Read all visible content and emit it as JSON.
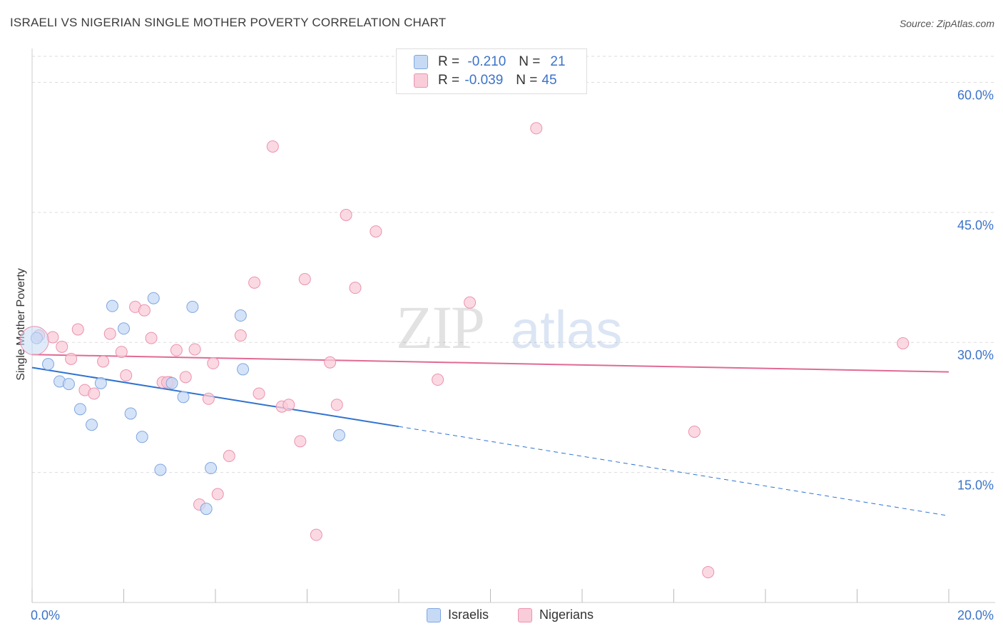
{
  "title": "ISRAELI VS NIGERIAN SINGLE MOTHER POVERTY CORRELATION CHART",
  "source": "Source: ZipAtlas.com",
  "watermark": {
    "zip": "ZIP",
    "atlas": "atlas"
  },
  "legend": {
    "rows": [
      {
        "r_label": "R =",
        "r_value": "-0.210",
        "n_label": "N =",
        "n_value": "21"
      },
      {
        "r_label": "R =",
        "r_value": "-0.039",
        "n_label": "N =",
        "n_value": "45"
      }
    ]
  },
  "colors": {
    "israelis_fill": "#c7daf5",
    "israelis_stroke": "#7ea6e0",
    "israelis_line": "#2f72d0",
    "nigerians_fill": "#f9ccd9",
    "nigerians_stroke": "#ec92ae",
    "nigerians_line": "#e06a94",
    "tick_text": "#3b73c8",
    "grid": "#dddddd"
  },
  "chart_data": {
    "type": "scatter",
    "title": "ISRAELI VS NIGERIAN SINGLE MOTHER POVERTY CORRELATION CHART",
    "xlabel": "",
    "ylabel": "Single Mother Poverty",
    "xlim": [
      0,
      20
    ],
    "ylim": [
      0,
      63
    ],
    "x_tick_labels": [
      "0.0%",
      "20.0%"
    ],
    "y_ticks": [
      15,
      30,
      45,
      60
    ],
    "y_tick_labels": [
      "15.0%",
      "30.0%",
      "45.0%",
      "60.0%"
    ],
    "grid": true,
    "legend_position": "bottom",
    "series": [
      {
        "name": "Israelis",
        "points": [
          [
            0.1,
            30.5
          ],
          [
            0.35,
            27.5
          ],
          [
            0.6,
            25.5
          ],
          [
            0.8,
            25.2
          ],
          [
            1.05,
            22.3
          ],
          [
            1.3,
            20.5
          ],
          [
            1.5,
            25.3
          ],
          [
            1.75,
            34.2
          ],
          [
            2.0,
            31.6
          ],
          [
            2.15,
            21.8
          ],
          [
            2.4,
            19.1
          ],
          [
            2.65,
            35.1
          ],
          [
            2.8,
            15.3
          ],
          [
            3.05,
            25.3
          ],
          [
            3.3,
            23.7
          ],
          [
            3.5,
            34.1
          ],
          [
            3.8,
            10.8
          ],
          [
            3.9,
            15.5
          ],
          [
            4.55,
            33.1
          ],
          [
            4.6,
            26.9
          ],
          [
            6.7,
            19.3
          ]
        ],
        "trend": {
          "x": [
            0,
            8
          ],
          "y": [
            27.1,
            20.3
          ],
          "dashed_extension": {
            "x": [
              8,
              20
            ],
            "y": [
              20.3,
              10.0
            ]
          }
        }
      },
      {
        "name": "Nigerians",
        "points": [
          [
            0.15,
            30.8
          ],
          [
            0.45,
            30.6
          ],
          [
            0.65,
            29.5
          ],
          [
            0.85,
            28.1
          ],
          [
            1.0,
            31.5
          ],
          [
            1.15,
            24.5
          ],
          [
            1.35,
            24.1
          ],
          [
            1.55,
            27.8
          ],
          [
            1.7,
            31.0
          ],
          [
            1.95,
            28.9
          ],
          [
            2.05,
            26.2
          ],
          [
            2.25,
            34.1
          ],
          [
            2.45,
            33.7
          ],
          [
            2.6,
            30.5
          ],
          [
            2.85,
            25.4
          ],
          [
            3.0,
            25.4
          ],
          [
            3.15,
            29.1
          ],
          [
            3.35,
            26.0
          ],
          [
            3.55,
            29.2
          ],
          [
            3.65,
            11.3
          ],
          [
            3.85,
            23.5
          ],
          [
            3.95,
            27.6
          ],
          [
            4.05,
            12.5
          ],
          [
            4.3,
            16.9
          ],
          [
            4.55,
            30.8
          ],
          [
            4.85,
            36.9
          ],
          [
            4.95,
            24.1
          ],
          [
            5.25,
            52.6
          ],
          [
            5.45,
            22.6
          ],
          [
            5.6,
            22.8
          ],
          [
            5.85,
            18.6
          ],
          [
            5.95,
            37.3
          ],
          [
            6.2,
            7.8
          ],
          [
            6.5,
            27.7
          ],
          [
            6.65,
            22.8
          ],
          [
            6.85,
            44.7
          ],
          [
            7.05,
            36.3
          ],
          [
            7.5,
            42.8
          ],
          [
            8.85,
            25.7
          ],
          [
            9.55,
            34.6
          ],
          [
            11.0,
            54.7
          ],
          [
            14.45,
            19.7
          ],
          [
            14.75,
            3.5
          ],
          [
            19.0,
            29.9
          ],
          [
            2.95,
            25.4
          ]
        ],
        "trend": {
          "x": [
            0,
            20
          ],
          "y": [
            28.6,
            26.6
          ]
        }
      }
    ]
  },
  "bottom_legend": {
    "israelis_label": "Israelis",
    "nigerians_label": "Nigerians"
  }
}
